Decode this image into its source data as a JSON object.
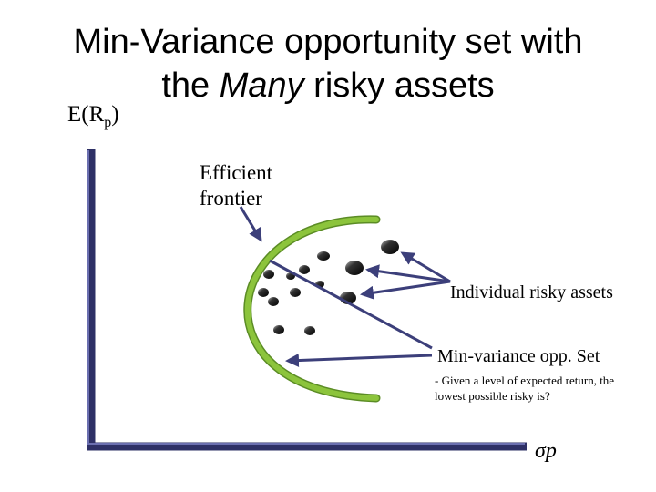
{
  "slide": {
    "title_line1": "Min-Variance opportunity set with",
    "title_pre": "the ",
    "title_em": "Many",
    "title_post": " risky assets",
    "y_axis_main": "E(R",
    "y_axis_sub": "p",
    "y_axis_close": ")",
    "x_axis_label": "σp"
  },
  "annotations": {
    "efficient_frontier_line1": "Efficient",
    "efficient_frontier_line2": "frontier",
    "individual_assets": "Individual risky assets",
    "min_variance": "Min-variance opp. Set",
    "min_variance_note": "- Given a level of expected return, the lowest possible risky is?"
  },
  "colors": {
    "axis": "#3c3f7a",
    "frontier": "#8cc43c",
    "arrow": "#3c3f7a",
    "asset_dot": "#111111"
  },
  "icons": {
    "asset": "black-dot",
    "pointer": "arrow"
  }
}
